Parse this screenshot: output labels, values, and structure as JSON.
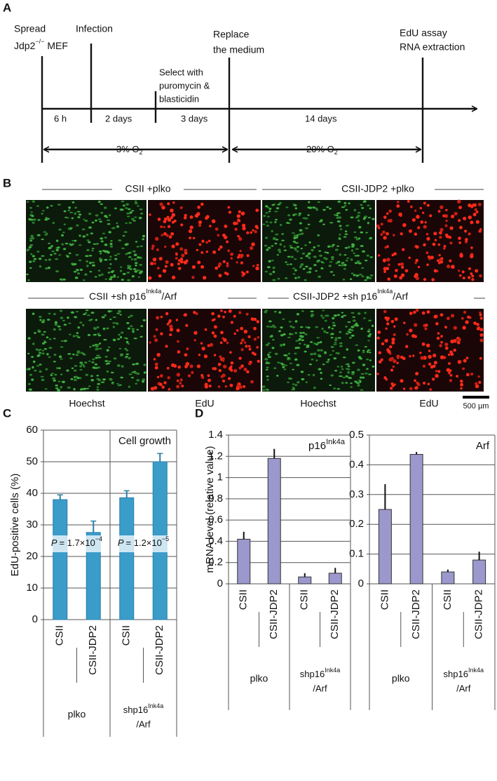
{
  "panel_labels": [
    "A",
    "B",
    "C",
    "D"
  ],
  "timeline": {
    "spread": "Spread",
    "strain": "Jdp2",
    "genotype": "−/−",
    "cell": "MEF",
    "infection": "Infection",
    "replace": [
      "Replace",
      "the medium"
    ],
    "select": [
      "Select with",
      "puromycin &",
      "blasticidin"
    ],
    "assay": [
      "EdU assay",
      "RNA extraction"
    ],
    "intervals": [
      "6 h",
      "2 days",
      "3 days",
      "14 days"
    ],
    "oxygen": [
      {
        "text": "3% O",
        "sub": "2"
      },
      {
        "text": "20% O",
        "sub": "2"
      }
    ]
  },
  "images": {
    "headers": [
      {
        "text": "CSII +plko"
      },
      {
        "text": "CSII-JDP2 +plko"
      },
      {
        "text": "CSII +sh p16",
        "sup": "Ink4a",
        "after": "/Arf"
      },
      {
        "text": "CSII-JDP2 +sh p16",
        "sup": "Ink4a",
        "after": "/Arf"
      }
    ],
    "stains": [
      "Hoechst",
      "EdU",
      "Hoechst",
      "EdU"
    ],
    "scale_bar": "500 µm"
  },
  "chart_data": [
    {
      "type": "bar",
      "title": "Cell growth",
      "ylabel": "EdU-positive cells (%)",
      "color": "#3a9cc9",
      "categories": [
        "CSII",
        "CSII-JDP2",
        "CSII",
        "CSII-JDP2"
      ],
      "values": [
        38,
        27.6,
        38.6,
        50
      ],
      "errors": [
        1.5,
        3.6,
        2.2,
        2.6
      ],
      "ylim": [
        0,
        60
      ],
      "yticks": [
        0,
        10,
        20,
        30,
        40,
        50,
        60
      ],
      "grid": true,
      "groups": [
        {
          "name": "plko"
        },
        {
          "name": "shp16",
          "sup": "Ink4a",
          "after": "/Arf"
        }
      ],
      "annotations": [
        {
          "italic": "P",
          "text": "= 1.7×10",
          "sup": "−4"
        },
        {
          "italic": "P",
          "text": "= 1.2×10",
          "sup": "−5"
        }
      ]
    },
    {
      "type": "bar",
      "title": "p16",
      "title_sup": "Ink4a",
      "ylabel": "mRNA level (relative value)",
      "color": "#9a98cc",
      "categories": [
        "CSII",
        "CSII-JDP2",
        "CSII",
        "CSII-JDP2"
      ],
      "values": [
        0.42,
        1.18,
        0.065,
        0.1
      ],
      "errors": [
        0.07,
        0.09,
        0.035,
        0.05
      ],
      "ylim": [
        0,
        1.4
      ],
      "yticks": [
        0,
        0.2,
        0.4,
        0.6,
        0.8,
        1,
        1.2,
        1.4
      ],
      "grid": true,
      "groups": [
        {
          "name": "plko"
        },
        {
          "name": "shp16",
          "sup": "Ink4a",
          "after": "/Arf"
        }
      ]
    },
    {
      "type": "bar",
      "title": "Arf",
      "color": "#9a98cc",
      "categories": [
        "CSII",
        "CSII-JDP2",
        "CSII",
        "CSII-JDP2"
      ],
      "values": [
        0.25,
        0.435,
        0.04,
        0.08
      ],
      "errors": [
        0.085,
        0.008,
        0.008,
        0.028
      ],
      "ylim": [
        0,
        0.5
      ],
      "yticks": [
        0,
        0.1,
        0.2,
        0.3,
        0.4,
        0.5
      ],
      "grid": true,
      "groups": [
        {
          "name": "plko"
        },
        {
          "name": "shp16",
          "sup": "Ink4a",
          "after": "/Arf"
        }
      ]
    }
  ]
}
